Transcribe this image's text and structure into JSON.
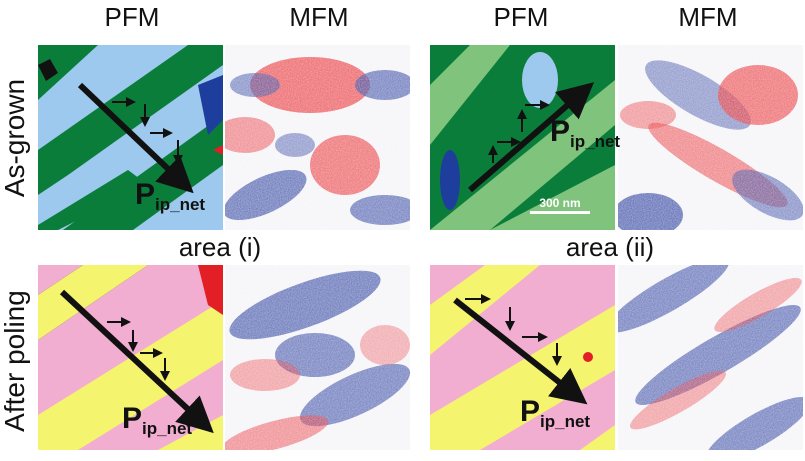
{
  "column_titles": [
    "PFM",
    "MFM",
    "PFM",
    "MFM"
  ],
  "row_labels": {
    "top": "As-grown",
    "bottom": "After poling"
  },
  "area_labels": {
    "left": "area (i)",
    "right": "area (ii)"
  },
  "polarization_label": {
    "main": "P",
    "sub": "ip_net"
  },
  "scale_bar": "300 nm",
  "colors": {
    "pfm_dark_green": "#0b7d3a",
    "pfm_light_green": "#7fc37c",
    "pfm_light_blue": "#9ec9ee",
    "pfm_dark_blue": "#1e3e9e",
    "poled_yellow": "#f4f46e",
    "poled_pink": "#f2aed0",
    "poled_red": "#e21f25",
    "mfm_red": "#e8252a",
    "mfm_blue": "#2a3d9e",
    "mfm_white": "#f4f4f8",
    "arrow": "#111111"
  }
}
